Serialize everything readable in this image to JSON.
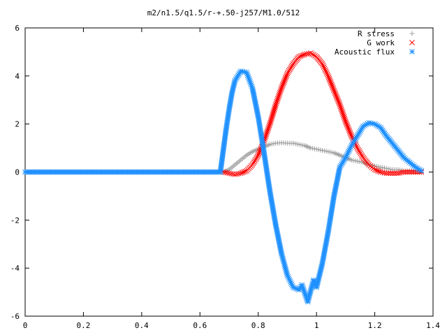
{
  "chart_data": {
    "type": "scatter",
    "title": "m2/n1.5/q1.5/r-+.50-j257/M1.0/512",
    "xlabel": "",
    "ylabel": "",
    "xlim": [
      0,
      1.4
    ],
    "ylim": [
      -6,
      6
    ],
    "x_ticks": [
      "0",
      "0.2",
      "0.4",
      "0.6",
      "0.8",
      "1",
      "1.2",
      "1.4"
    ],
    "y_ticks": [
      "-6",
      "-4",
      "-2",
      "0",
      "2",
      "4",
      "6"
    ],
    "grid": false,
    "legend_placement": "top-right",
    "series": [
      {
        "name": "R stress",
        "marker": "plus",
        "color": "#a0a0a0",
        "x": [
          0,
          0.1,
          0.2,
          0.3,
          0.4,
          0.5,
          0.6,
          0.68,
          0.7,
          0.72,
          0.74,
          0.76,
          0.78,
          0.8,
          0.82,
          0.84,
          0.86,
          0.88,
          0.9,
          0.92,
          0.94,
          0.96,
          0.98,
          1.0,
          1.02,
          1.04,
          1.06,
          1.08,
          1.1,
          1.12,
          1.14,
          1.16,
          1.18,
          1.2,
          1.22,
          1.24,
          1.26,
          1.28,
          1.3,
          1.32,
          1.34,
          1.36
        ],
        "y": [
          0,
          0,
          0,
          0,
          0,
          0,
          0,
          0,
          0.1,
          0.3,
          0.5,
          0.7,
          0.85,
          0.95,
          1.05,
          1.15,
          1.2,
          1.22,
          1.2,
          1.2,
          1.15,
          1.1,
          1.0,
          0.95,
          0.9,
          0.85,
          0.8,
          0.7,
          0.6,
          0.5,
          0.45,
          0.4,
          0.3,
          0.25,
          0.2,
          0.15,
          0.1,
          0.1,
          0.05,
          0.05,
          0.05,
          0
        ]
      },
      {
        "name": "G work",
        "marker": "cross",
        "color": "#ff0000",
        "x": [
          0.68,
          0.7,
          0.72,
          0.74,
          0.76,
          0.78,
          0.8,
          0.82,
          0.84,
          0.86,
          0.88,
          0.9,
          0.92,
          0.94,
          0.96,
          0.98,
          1.0,
          1.02,
          1.04,
          1.06,
          1.08,
          1.1,
          1.12,
          1.14,
          1.16,
          1.18,
          1.2,
          1.22,
          1.24,
          1.26,
          1.28,
          1.3,
          1.32,
          1.34,
          1.36
        ],
        "y": [
          0,
          -0.05,
          -0.1,
          -0.05,
          0.05,
          0.3,
          0.7,
          1.3,
          2.0,
          2.8,
          3.5,
          4.1,
          4.5,
          4.8,
          4.9,
          4.95,
          4.8,
          4.5,
          4.0,
          3.4,
          2.8,
          2.1,
          1.5,
          1.0,
          0.6,
          0.3,
          0.1,
          0,
          -0.05,
          -0.05,
          -0.05,
          0,
          0,
          0,
          0
        ]
      },
      {
        "name": "Acoustic flux",
        "marker": "star",
        "color": "#1e90ff",
        "x": [
          0,
          0.1,
          0.2,
          0.3,
          0.4,
          0.5,
          0.6,
          0.67,
          0.68,
          0.69,
          0.7,
          0.71,
          0.72,
          0.74,
          0.76,
          0.78,
          0.8,
          0.82,
          0.84,
          0.86,
          0.88,
          0.9,
          0.92,
          0.94,
          0.95,
          0.97,
          0.99,
          1.0,
          1.02,
          1.04,
          1.06,
          1.08,
          1.1,
          1.12,
          1.14,
          1.16,
          1.18,
          1.2,
          1.22,
          1.24,
          1.26,
          1.28,
          1.3,
          1.32,
          1.34,
          1.36
        ],
        "y": [
          0,
          0,
          0,
          0,
          0,
          0,
          0,
          0,
          0.9,
          1.8,
          2.6,
          3.3,
          3.8,
          4.2,
          4.15,
          3.5,
          2.3,
          0.8,
          -0.8,
          -2.2,
          -3.4,
          -4.3,
          -4.8,
          -4.9,
          -4.7,
          -5.4,
          -4.5,
          -4.8,
          -3.8,
          -2.5,
          -1.0,
          0.2,
          0.6,
          1.1,
          1.5,
          1.9,
          2.05,
          2.0,
          1.85,
          1.5,
          1.2,
          0.9,
          0.6,
          0.4,
          0.2,
          0.05
        ]
      }
    ]
  }
}
